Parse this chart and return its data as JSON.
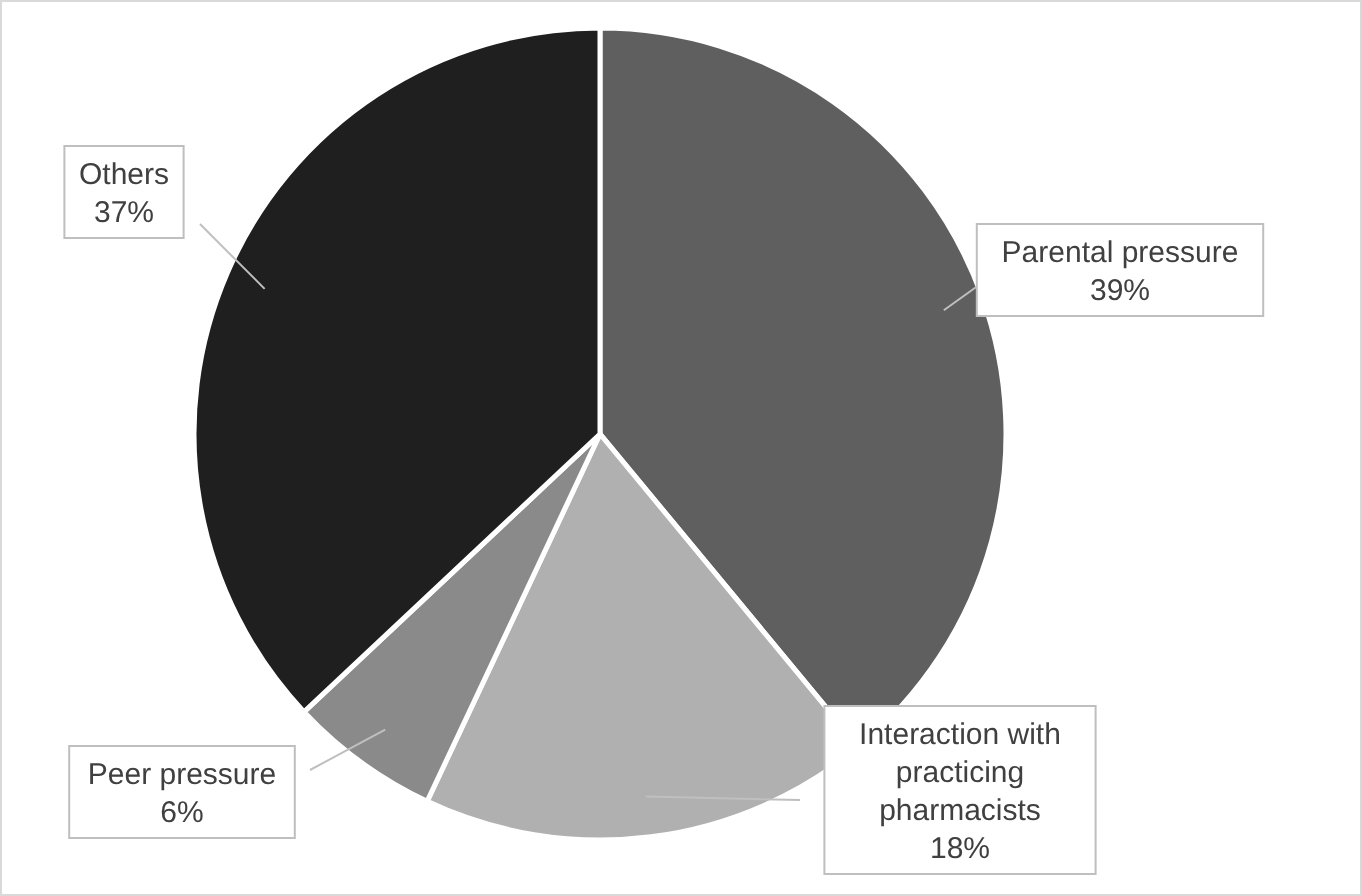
{
  "chart_data": {
    "type": "pie",
    "categories": [
      "Parental pressure",
      "Interaction with practicing pharmacists",
      "Peer pressure",
      "Others"
    ],
    "values": [
      39,
      18,
      6,
      37
    ],
    "colors": [
      "#5f5f5f",
      "#b0b0b0",
      "#8a8a8a",
      "#1f1f1f"
    ],
    "value_labels": [
      "39%",
      "18%",
      "6%",
      "37%"
    ]
  }
}
